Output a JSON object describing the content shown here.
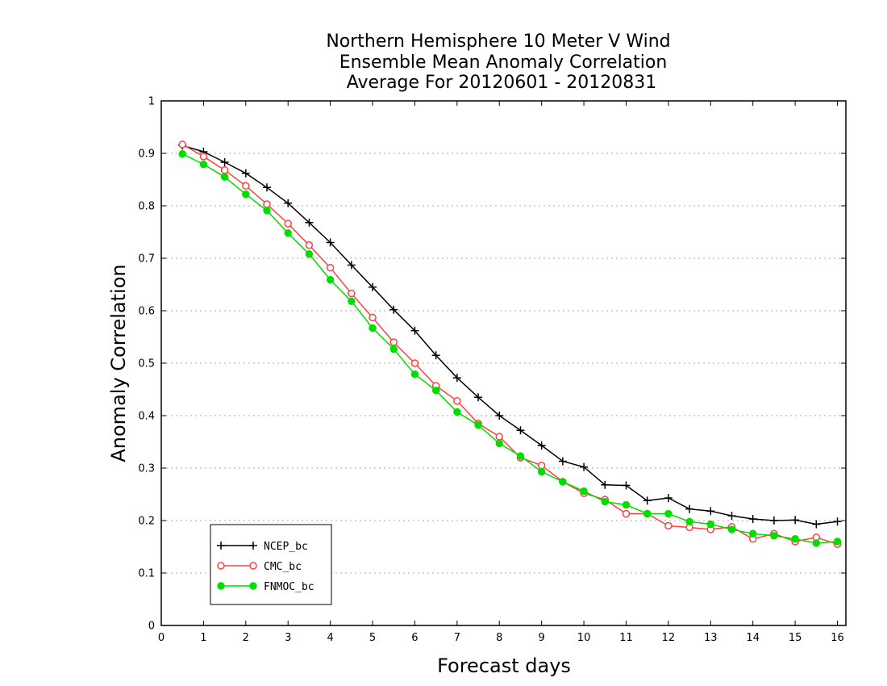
{
  "chart_data": {
    "type": "line",
    "title": [
      "Northern Hemisphere 10 Meter V Wind",
      "Ensemble Mean Anomaly Correlation",
      "Average For 20120601 - 20120831"
    ],
    "xlabel": "Forecast days",
    "ylabel": "Anomaly Correlation",
    "xlim": [
      0,
      16.2
    ],
    "ylim": [
      0,
      1
    ],
    "xticks": [
      0,
      1,
      2,
      3,
      4,
      5,
      6,
      7,
      8,
      9,
      10,
      11,
      12,
      13,
      14,
      15,
      16
    ],
    "xtick_labels": [
      "0",
      "1",
      "2",
      "3",
      "4",
      "5",
      "6",
      "7",
      "8",
      "9",
      "10",
      "11",
      "12",
      "13",
      "14",
      "15",
      "16"
    ],
    "yticks": [
      0,
      0.1,
      0.2,
      0.3,
      0.4,
      0.5,
      0.6,
      0.7,
      0.8,
      0.9,
      1
    ],
    "ytick_labels": [
      "0",
      "0.1",
      "0.2",
      "0.3",
      "0.4",
      "0.5",
      "0.6",
      "0.7",
      "0.8",
      "0.9",
      "1"
    ],
    "grid": "horizontal dotted",
    "legend_position": "bottom-left",
    "x": [
      0.5,
      1,
      1.5,
      2,
      2.5,
      3,
      3.5,
      4,
      4.5,
      5,
      5.5,
      6,
      6.5,
      7,
      7.5,
      8,
      8.5,
      9,
      9.5,
      10,
      10.5,
      11,
      11.5,
      12,
      12.5,
      13,
      13.5,
      14,
      14.5,
      15,
      15.5,
      16
    ],
    "series": [
      {
        "name": "NCEP_bc",
        "color": "#000000",
        "marker": "plus",
        "values": [
          0.915,
          0.903,
          0.883,
          0.862,
          0.835,
          0.805,
          0.768,
          0.73,
          0.687,
          0.645,
          0.602,
          0.562,
          0.515,
          0.472,
          0.435,
          0.4,
          0.372,
          0.343,
          0.313,
          0.302,
          0.268,
          0.267,
          0.238,
          0.243,
          0.222,
          0.218,
          0.209,
          0.203,
          0.2,
          0.201,
          0.193,
          0.198
        ]
      },
      {
        "name": "CMC_bc",
        "color": "#ff4040",
        "marker": "open-circle",
        "values": [
          0.917,
          0.894,
          0.868,
          0.838,
          0.803,
          0.766,
          0.725,
          0.682,
          0.633,
          0.587,
          0.54,
          0.5,
          0.457,
          0.428,
          0.385,
          0.36,
          0.32,
          0.305,
          0.274,
          0.252,
          0.24,
          0.213,
          0.213,
          0.19,
          0.187,
          0.183,
          0.188,
          0.165,
          0.175,
          0.16,
          0.168,
          0.155
        ]
      },
      {
        "name": "FNMOC_bc",
        "color": "#00dd00",
        "marker": "filled-circle",
        "values": [
          0.899,
          0.879,
          0.855,
          0.822,
          0.791,
          0.748,
          0.708,
          0.659,
          0.618,
          0.567,
          0.527,
          0.479,
          0.448,
          0.407,
          0.382,
          0.347,
          0.323,
          0.293,
          0.274,
          0.256,
          0.236,
          0.23,
          0.213,
          0.213,
          0.198,
          0.193,
          0.183,
          0.175,
          0.171,
          0.165,
          0.157,
          0.16
        ]
      }
    ]
  }
}
